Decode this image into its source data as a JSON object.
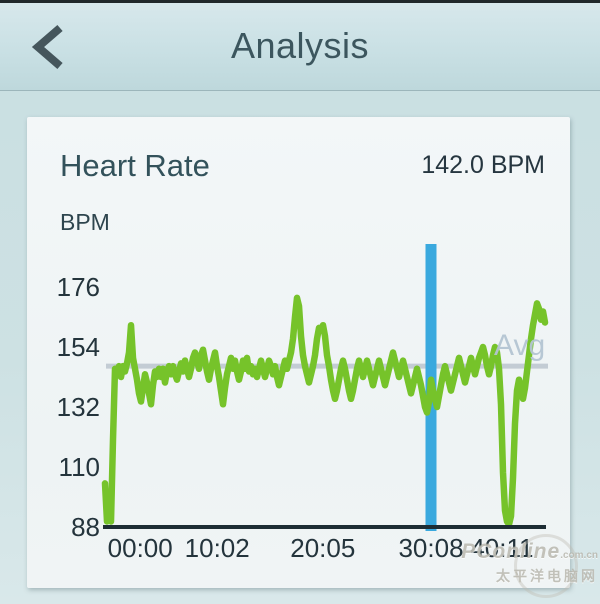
{
  "header": {
    "title": "Analysis"
  },
  "card": {
    "title": "Heart Rate",
    "selected_value": "142.0 BPM",
    "unit_label": "BPM"
  },
  "watermark": {
    "line1": "PConline",
    "line1_suffix": ".com.cn",
    "line2": "太平洋电脑网"
  },
  "accent_colors": {
    "header_text": "#3c565e",
    "card_background": "#f0f4f5",
    "page_background": "#cde1e3"
  },
  "chart_data": {
    "type": "line",
    "title": "Heart Rate",
    "ylabel": "BPM",
    "yticks": [
      176,
      154,
      132,
      110,
      88
    ],
    "ylim": [
      88,
      193
    ],
    "xticks": [
      {
        "label": "00:00",
        "pos": 0.08
      },
      {
        "label": "10:02",
        "pos": 0.255
      },
      {
        "label": "20:05",
        "pos": 0.495
      },
      {
        "label": "30:08",
        "pos": 0.741
      },
      {
        "label": "40:11",
        "pos": 0.902
      }
    ],
    "x_unit": "time mm:ss",
    "t_minutes_start": 0,
    "t_minutes_end": 44,
    "grid": false,
    "avg_bpm": 147,
    "avg_label": "Avg",
    "cursor": {
      "pos": 0.741,
      "value_bpm": 142.0
    },
    "line_color": "#76c32a",
    "cursor_color": "#3aa9de",
    "avg_color": "#c3ccd4",
    "axis_color": "#1d2d34",
    "bpm_series": [
      104,
      90,
      91,
      90,
      120,
      146,
      144,
      147,
      143,
      147,
      145,
      148,
      152,
      162,
      150,
      146,
      142,
      137,
      134,
      139,
      144,
      141,
      137,
      133,
      140,
      145,
      143,
      146,
      143,
      146,
      141,
      145,
      147,
      144,
      147,
      144,
      142,
      145,
      148,
      145,
      149,
      146,
      143,
      146,
      150,
      152,
      149,
      146,
      151,
      153,
      149,
      145,
      142,
      146,
      149,
      152,
      147,
      143,
      138,
      133,
      139,
      144,
      147,
      150,
      146,
      149,
      145,
      142,
      145,
      149,
      146,
      150,
      145,
      147,
      144,
      146,
      143,
      146,
      149,
      146,
      143,
      146,
      149,
      147,
      144,
      147,
      143,
      140,
      143,
      146,
      149,
      146,
      149,
      152,
      157,
      165,
      172,
      169,
      158,
      151,
      147,
      144,
      141,
      144,
      147,
      151,
      157,
      161,
      160,
      162,
      158,
      151,
      147,
      142,
      138,
      135,
      138,
      142,
      146,
      149,
      146,
      142,
      138,
      135,
      138,
      142,
      146,
      149,
      146,
      143,
      146,
      149,
      146,
      143,
      140,
      143,
      146,
      149,
      146,
      143,
      140,
      143,
      146,
      149,
      152,
      149,
      146,
      143,
      146,
      149,
      146,
      143,
      140,
      137,
      140,
      143,
      146,
      143,
      140,
      136,
      132,
      130,
      134,
      142,
      138,
      135,
      132,
      136,
      140,
      144,
      147,
      144,
      141,
      138,
      141,
      144,
      147,
      150,
      147,
      144,
      141,
      144,
      147,
      150,
      147,
      144,
      147,
      150,
      152,
      154,
      151,
      147,
      144,
      147,
      151,
      154,
      152,
      146,
      133,
      108,
      94,
      90,
      89,
      92,
      106,
      126,
      138,
      142,
      139,
      135,
      139,
      145,
      151,
      157,
      162,
      166,
      170,
      168,
      164,
      167,
      163
    ]
  }
}
